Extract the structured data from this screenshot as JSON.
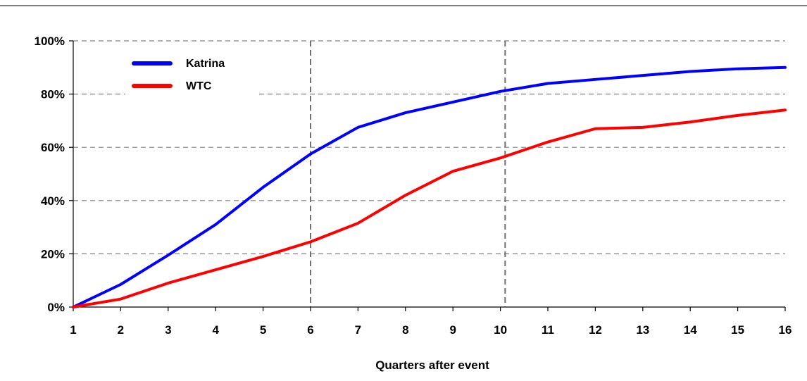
{
  "chart_data": {
    "type": "line",
    "title": "",
    "xlabel": "Quarters after event",
    "ylabel": "",
    "x": [
      1,
      2,
      3,
      4,
      5,
      6,
      7,
      8,
      9,
      10,
      11,
      12,
      13,
      14,
      15,
      16
    ],
    "xlim": [
      1,
      16
    ],
    "ylim": [
      0,
      100
    ],
    "y_ticks": [
      0,
      20,
      40,
      60,
      80,
      100
    ],
    "y_tick_labels": [
      "0%",
      "20%",
      "40%",
      "60%",
      "80%",
      "100%"
    ],
    "x_tick_labels": [
      "1",
      "2",
      "3",
      "4",
      "5",
      "6",
      "7",
      "8",
      "9",
      "10",
      "11",
      "12",
      "13",
      "14",
      "15",
      "16"
    ],
    "grid": "horizontal dashed",
    "reference_lines_x": [
      6,
      10.1
    ],
    "legend_position": "top-left",
    "series": [
      {
        "name": "Katrina",
        "color": "#0000ff",
        "values": [
          0,
          8.5,
          19.5,
          31,
          45,
          57.5,
          67.5,
          73,
          77,
          81,
          84,
          85.5,
          87,
          88.5,
          89.5,
          90
        ]
      },
      {
        "name": "WTC",
        "color": "#ff0000",
        "values": [
          0,
          3,
          9,
          14,
          19,
          24.5,
          31.5,
          42,
          51,
          56,
          62,
          67,
          67.5,
          69.5,
          72,
          74
        ]
      }
    ]
  }
}
